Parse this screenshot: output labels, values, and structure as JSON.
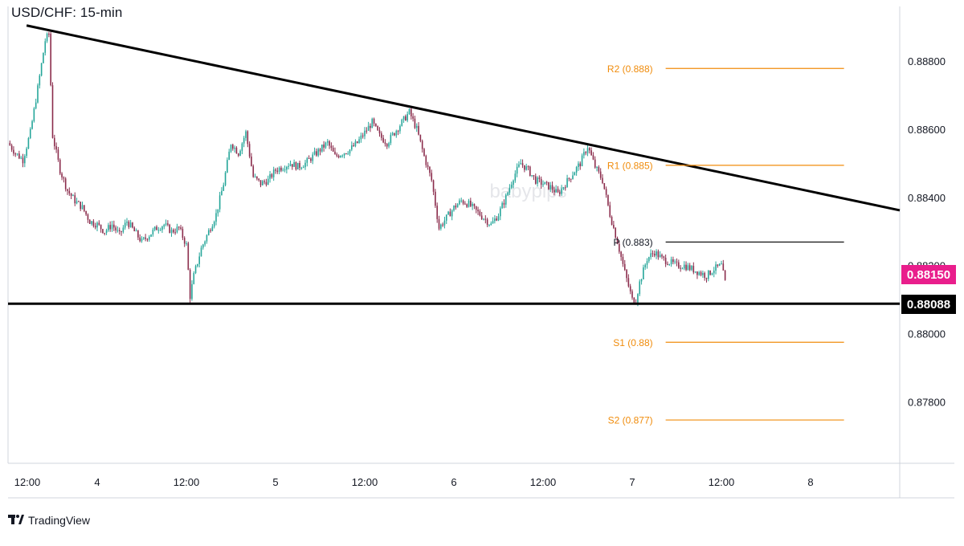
{
  "title": "USD/CHF: 15-min",
  "brand": {
    "name": "TradingView"
  },
  "watermark": "babypips",
  "colors": {
    "pivot_orange": "#f08c0c",
    "up_candle": "#26a69a",
    "down_candle": "#8b2c4c",
    "current_tag": "#e91e8c",
    "support_tag": "#000000",
    "trend_line": "#000000",
    "grid_border": "#d1d4dc",
    "axis_text": "#131722"
  },
  "price_tags": {
    "current": "0.88150",
    "support": "0.88088"
  },
  "chart_data": {
    "type": "candlestick",
    "title": "USD/CHF: 15-min",
    "ylim": [
      0.8762,
      0.8896
    ],
    "y_ticks": [
      "0.88800",
      "0.88600",
      "0.88400",
      "0.88200",
      "0.88000",
      "0.87800"
    ],
    "x_ticks": [
      "12:00",
      "4",
      "12:00",
      "5",
      "12:00",
      "6",
      "12:00",
      "7",
      "12:00",
      "8"
    ],
    "x_range_hours": [
      -12,
      108
    ],
    "trend_line": {
      "from": {
        "hours": -9.5,
        "price": 0.88904
      },
      "to": {
        "hours": 108,
        "price": 0.88362
      }
    },
    "support_line": {
      "price": 0.88088
    },
    "pivot_levels": [
      {
        "label": "R2 (0.888)",
        "value": 0.88778,
        "color": "orange"
      },
      {
        "label": "R1 (0.885)",
        "value": 0.88494,
        "color": "orange"
      },
      {
        "label": "P (0.883)",
        "value": 0.88269,
        "color": "black"
      },
      {
        "label": "S1 (0.88)",
        "value": 0.87975,
        "color": "orange"
      },
      {
        "label": "S2 (0.877)",
        "value": 0.87747,
        "color": "orange"
      }
    ],
    "price_path": [
      [
        -12,
        0.8856
      ],
      [
        -11,
        0.8853
      ],
      [
        -10,
        0.8851
      ],
      [
        -9,
        0.8859
      ],
      [
        -8,
        0.8872
      ],
      [
        -7,
        0.8886
      ],
      [
        -6.5,
        0.8888
      ],
      [
        -6,
        0.8858
      ],
      [
        -5,
        0.8848
      ],
      [
        -4,
        0.8842
      ],
      [
        -3,
        0.8839
      ],
      [
        -2,
        0.8837
      ],
      [
        -1,
        0.8833
      ],
      [
        0,
        0.8832
      ],
      [
        1,
        0.883
      ],
      [
        2,
        0.8832
      ],
      [
        3,
        0.8829
      ],
      [
        4,
        0.8833
      ],
      [
        5,
        0.883
      ],
      [
        6,
        0.8827
      ],
      [
        7,
        0.8829
      ],
      [
        8,
        0.8831
      ],
      [
        9,
        0.8832
      ],
      [
        10,
        0.883
      ],
      [
        11,
        0.8831
      ],
      [
        12,
        0.8826
      ],
      [
        12.5,
        0.8811
      ],
      [
        13,
        0.8817
      ],
      [
        14,
        0.8825
      ],
      [
        15,
        0.883
      ],
      [
        16,
        0.8835
      ],
      [
        17,
        0.8844
      ],
      [
        18,
        0.8856
      ],
      [
        19,
        0.8853
      ],
      [
        20,
        0.8859
      ],
      [
        21,
        0.8846
      ],
      [
        22,
        0.8844
      ],
      [
        23,
        0.8845
      ],
      [
        24,
        0.8848
      ],
      [
        25,
        0.8849
      ],
      [
        26,
        0.885
      ],
      [
        27,
        0.8849
      ],
      [
        28,
        0.885
      ],
      [
        29,
        0.8852
      ],
      [
        30,
        0.8854
      ],
      [
        31,
        0.8856
      ],
      [
        32,
        0.8852
      ],
      [
        33,
        0.8853
      ],
      [
        34,
        0.8854
      ],
      [
        35,
        0.8856
      ],
      [
        36,
        0.8859
      ],
      [
        37,
        0.8862
      ],
      [
        38,
        0.8858
      ],
      [
        39,
        0.8856
      ],
      [
        40,
        0.8859
      ],
      [
        41,
        0.8862
      ],
      [
        42,
        0.8865
      ],
      [
        43,
        0.886
      ],
      [
        44,
        0.8852
      ],
      [
        45,
        0.8845
      ],
      [
        46,
        0.8831
      ],
      [
        47,
        0.8834
      ],
      [
        48,
        0.8837
      ],
      [
        49,
        0.8839
      ],
      [
        50,
        0.8838
      ],
      [
        51,
        0.8836
      ],
      [
        52,
        0.8834
      ],
      [
        53,
        0.8832
      ],
      [
        54,
        0.8835
      ],
      [
        55,
        0.884
      ],
      [
        56,
        0.8846
      ],
      [
        57,
        0.885
      ],
      [
        58,
        0.8848
      ],
      [
        59,
        0.8845
      ],
      [
        60,
        0.8844
      ],
      [
        61,
        0.8843
      ],
      [
        62,
        0.8841
      ],
      [
        63,
        0.8844
      ],
      [
        64,
        0.8847
      ],
      [
        65,
        0.885
      ],
      [
        66,
        0.8855
      ],
      [
        67,
        0.8849
      ],
      [
        68,
        0.8845
      ],
      [
        69,
        0.8835
      ],
      [
        70,
        0.8827
      ],
      [
        71,
        0.8818
      ],
      [
        72,
        0.881
      ],
      [
        72.5,
        0.881
      ],
      [
        73,
        0.8815
      ],
      [
        74,
        0.8822
      ],
      [
        75,
        0.8824
      ],
      [
        76,
        0.8822
      ],
      [
        77,
        0.8821
      ],
      [
        78,
        0.882
      ],
      [
        79,
        0.882
      ],
      [
        80,
        0.8819
      ],
      [
        81,
        0.8818
      ],
      [
        82,
        0.8817
      ],
      [
        83,
        0.8819
      ],
      [
        84,
        0.882
      ],
      [
        84.5,
        0.8815
      ]
    ]
  }
}
